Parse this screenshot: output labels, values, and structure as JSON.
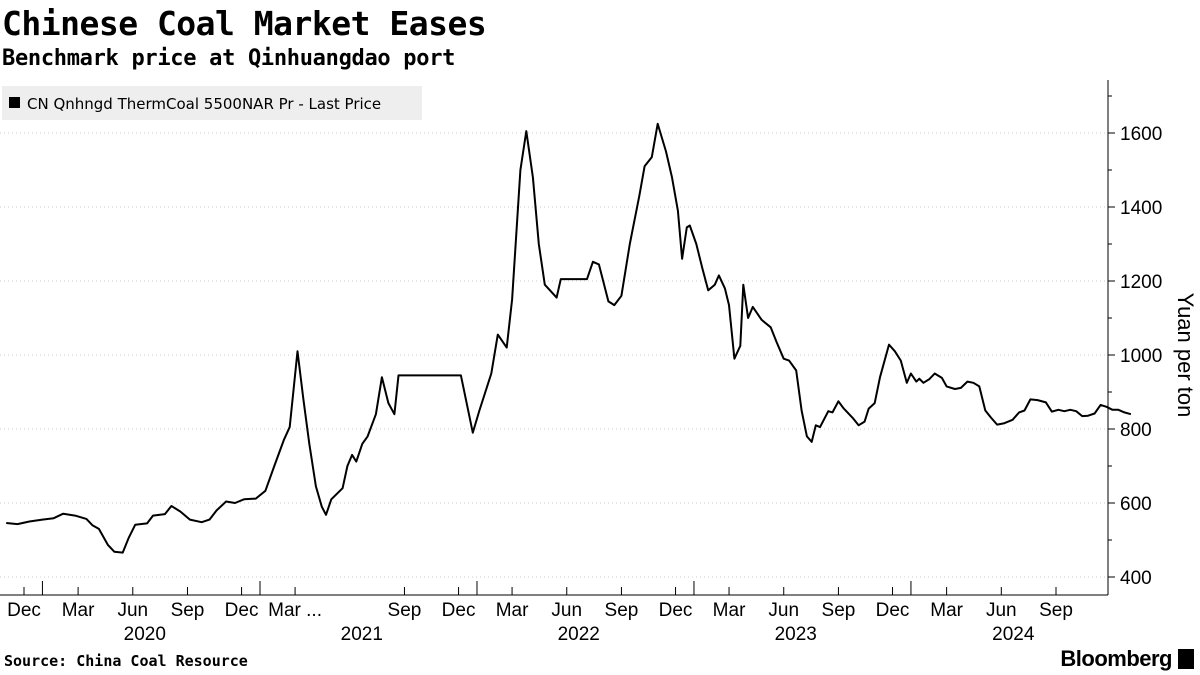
{
  "title": "Chinese Coal Market Eases",
  "subtitle": "Benchmark price at Qinhuangdao port",
  "source": "Source: China Coal Resource",
  "brand": "Bloomberg",
  "colors": {
    "line": "#000000",
    "grid": "#cccccc",
    "legend_bg": "#eeeeee"
  },
  "chart_data": {
    "type": "line",
    "title": "Chinese Coal Market Eases",
    "subtitle": "Benchmark price at Qinhuangdao port",
    "ylabel": "Yuan per ton",
    "xlabel": "",
    "ylim": [
      375,
      1750
    ],
    "y_ticks": [
      400,
      600,
      800,
      1000,
      1200,
      1400,
      1600
    ],
    "y_axis_side": "right",
    "grid": "horizontal dotted",
    "legend_placement": "top-left",
    "x_range": [
      "2019-11-01",
      "2024-11-15"
    ],
    "x_ticks": [
      {
        "date": "2019-12-01",
        "label": "Dec"
      },
      {
        "date": "2020-03-01",
        "label": "Mar"
      },
      {
        "date": "2020-06-01",
        "label": "Jun"
      },
      {
        "date": "2020-09-01",
        "label": "Sep"
      },
      {
        "date": "2020-12-01",
        "label": "Dec"
      },
      {
        "date": "2021-03-01",
        "label": "Mar ..."
      },
      {
        "date": "2021-09-01",
        "label": "Sep"
      },
      {
        "date": "2021-12-01",
        "label": "Dec"
      },
      {
        "date": "2022-03-01",
        "label": "Mar"
      },
      {
        "date": "2022-06-01",
        "label": "Jun"
      },
      {
        "date": "2022-09-01",
        "label": "Sep"
      },
      {
        "date": "2022-12-01",
        "label": "Dec"
      },
      {
        "date": "2023-03-01",
        "label": "Mar"
      },
      {
        "date": "2023-06-01",
        "label": "Jun"
      },
      {
        "date": "2023-09-01",
        "label": "Sep"
      },
      {
        "date": "2023-12-01",
        "label": "Dec"
      },
      {
        "date": "2024-03-01",
        "label": "Mar"
      },
      {
        "date": "2024-06-01",
        "label": "Jun"
      },
      {
        "date": "2024-09-01",
        "label": "Sep"
      }
    ],
    "year_labels": [
      {
        "date": "2020-06-01",
        "label": "2020"
      },
      {
        "date": "2021-06-01",
        "label": "2021"
      },
      {
        "date": "2022-06-01",
        "label": "2022"
      },
      {
        "date": "2023-06-01",
        "label": "2023"
      },
      {
        "date": "2024-06-01",
        "label": "2024"
      }
    ],
    "series": [
      {
        "name": "CN Qnhngd ThermCoal 5500NAR Pr - Last Price",
        "points": [
          [
            "2019-11-01",
            546
          ],
          [
            "2019-11-20",
            543
          ],
          [
            "2019-12-10",
            550
          ],
          [
            "2020-01-01",
            555
          ],
          [
            "2020-01-20",
            559
          ],
          [
            "2020-02-05",
            571
          ],
          [
            "2020-02-25",
            566
          ],
          [
            "2020-03-15",
            557
          ],
          [
            "2020-03-25",
            540
          ],
          [
            "2020-04-05",
            530
          ],
          [
            "2020-04-20",
            487
          ],
          [
            "2020-05-01",
            468
          ],
          [
            "2020-05-15",
            466
          ],
          [
            "2020-05-25",
            505
          ],
          [
            "2020-06-05",
            541
          ],
          [
            "2020-06-25",
            545
          ],
          [
            "2020-07-05",
            566
          ],
          [
            "2020-07-25",
            570
          ],
          [
            "2020-08-05",
            592
          ],
          [
            "2020-08-20",
            577
          ],
          [
            "2020-09-05",
            555
          ],
          [
            "2020-09-25",
            548
          ],
          [
            "2020-10-08",
            555
          ],
          [
            "2020-10-20",
            580
          ],
          [
            "2020-11-05",
            604
          ],
          [
            "2020-11-20",
            600
          ],
          [
            "2020-12-05",
            610
          ],
          [
            "2020-12-25",
            612
          ],
          [
            "2021-01-10",
            633
          ],
          [
            "2021-01-25",
            700
          ],
          [
            "2021-02-10",
            770
          ],
          [
            "2021-02-20",
            805
          ],
          [
            "2021-03-05",
            1010
          ],
          [
            "2021-03-15",
            880
          ],
          [
            "2021-03-25",
            760
          ],
          [
            "2021-04-05",
            645
          ],
          [
            "2021-04-15",
            590
          ],
          [
            "2021-04-22",
            568
          ],
          [
            "2021-05-01",
            610
          ],
          [
            "2021-05-20",
            640
          ],
          [
            "2021-05-28",
            700
          ],
          [
            "2021-06-05",
            730
          ],
          [
            "2021-06-12",
            712
          ],
          [
            "2021-06-22",
            760
          ],
          [
            "2021-07-01",
            780
          ],
          [
            "2021-07-15",
            840
          ],
          [
            "2021-07-25",
            940
          ],
          [
            "2021-08-05",
            870
          ],
          [
            "2021-08-15",
            840
          ],
          [
            "2021-08-22",
            945
          ],
          [
            "2021-12-05",
            945
          ],
          [
            "2021-12-25",
            790
          ],
          [
            "2022-01-05",
            850
          ],
          [
            "2022-01-25",
            950
          ],
          [
            "2022-02-05",
            1055
          ],
          [
            "2022-02-20",
            1020
          ],
          [
            "2022-03-01",
            1150
          ],
          [
            "2022-03-15",
            1500
          ],
          [
            "2022-03-25",
            1605
          ],
          [
            "2022-04-05",
            1480
          ],
          [
            "2022-04-15",
            1300
          ],
          [
            "2022-04-25",
            1190
          ],
          [
            "2022-05-15",
            1155
          ],
          [
            "2022-05-22",
            1205
          ],
          [
            "2022-07-05",
            1205
          ],
          [
            "2022-07-15",
            1252
          ],
          [
            "2022-07-25",
            1245
          ],
          [
            "2022-08-10",
            1145
          ],
          [
            "2022-08-20",
            1135
          ],
          [
            "2022-09-01",
            1160
          ],
          [
            "2022-09-15",
            1300
          ],
          [
            "2022-10-01",
            1430
          ],
          [
            "2022-10-10",
            1510
          ],
          [
            "2022-10-22",
            1535
          ],
          [
            "2022-11-01",
            1625
          ],
          [
            "2022-11-15",
            1550
          ],
          [
            "2022-11-25",
            1480
          ],
          [
            "2022-12-05",
            1390
          ],
          [
            "2022-12-12",
            1260
          ],
          [
            "2022-12-20",
            1345
          ],
          [
            "2022-12-25",
            1350
          ],
          [
            "2023-01-05",
            1300
          ],
          [
            "2023-01-15",
            1235
          ],
          [
            "2023-01-25",
            1175
          ],
          [
            "2023-02-05",
            1190
          ],
          [
            "2023-02-12",
            1215
          ],
          [
            "2023-02-22",
            1180
          ],
          [
            "2023-03-01",
            1135
          ],
          [
            "2023-03-10",
            990
          ],
          [
            "2023-03-20",
            1025
          ],
          [
            "2023-03-25",
            1190
          ],
          [
            "2023-04-02",
            1100
          ],
          [
            "2023-04-10",
            1130
          ],
          [
            "2023-04-25",
            1095
          ],
          [
            "2023-05-10",
            1075
          ],
          [
            "2023-05-20",
            1035
          ],
          [
            "2023-06-01",
            990
          ],
          [
            "2023-06-10",
            985
          ],
          [
            "2023-06-22",
            958
          ],
          [
            "2023-07-01",
            850
          ],
          [
            "2023-07-10",
            780
          ],
          [
            "2023-07-18",
            765
          ],
          [
            "2023-07-25",
            810
          ],
          [
            "2023-08-01",
            805
          ],
          [
            "2023-08-15",
            848
          ],
          [
            "2023-08-22",
            845
          ],
          [
            "2023-09-01",
            875
          ],
          [
            "2023-09-10",
            855
          ],
          [
            "2023-09-25",
            830
          ],
          [
            "2023-10-05",
            810
          ],
          [
            "2023-10-15",
            820
          ],
          [
            "2023-10-22",
            855
          ],
          [
            "2023-11-01",
            870
          ],
          [
            "2023-11-10",
            940
          ],
          [
            "2023-11-25",
            1028
          ],
          [
            "2023-12-05",
            1010
          ],
          [
            "2023-12-15",
            985
          ],
          [
            "2023-12-25",
            925
          ],
          [
            "2024-01-01",
            950
          ],
          [
            "2024-01-10",
            928
          ],
          [
            "2024-01-15",
            936
          ],
          [
            "2024-01-22",
            925
          ],
          [
            "2024-02-01",
            935
          ],
          [
            "2024-02-10",
            950
          ],
          [
            "2024-02-22",
            938
          ],
          [
            "2024-03-01",
            915
          ],
          [
            "2024-03-15",
            908
          ],
          [
            "2024-03-25",
            911
          ],
          [
            "2024-04-05",
            928
          ],
          [
            "2024-04-15",
            925
          ],
          [
            "2024-04-25",
            915
          ],
          [
            "2024-05-05",
            850
          ],
          [
            "2024-05-15",
            830
          ],
          [
            "2024-05-25",
            812
          ],
          [
            "2024-06-05",
            815
          ],
          [
            "2024-06-20",
            825
          ],
          [
            "2024-07-01",
            845
          ],
          [
            "2024-07-10",
            850
          ],
          [
            "2024-07-20",
            880
          ],
          [
            "2024-08-01",
            878
          ],
          [
            "2024-08-15",
            872
          ],
          [
            "2024-08-25",
            847
          ],
          [
            "2024-09-05",
            852
          ],
          [
            "2024-09-15",
            848
          ],
          [
            "2024-09-25",
            852
          ],
          [
            "2024-10-05",
            848
          ],
          [
            "2024-10-15",
            835
          ],
          [
            "2024-10-25",
            836
          ],
          [
            "2024-11-05",
            842
          ],
          [
            "2024-11-15",
            865
          ],
          [
            "2024-11-25",
            860
          ],
          [
            "2024-12-05",
            852
          ],
          [
            "2024-12-15",
            852
          ],
          [
            "2024-12-25",
            845
          ],
          [
            "2025-01-05",
            840
          ]
        ]
      }
    ]
  }
}
